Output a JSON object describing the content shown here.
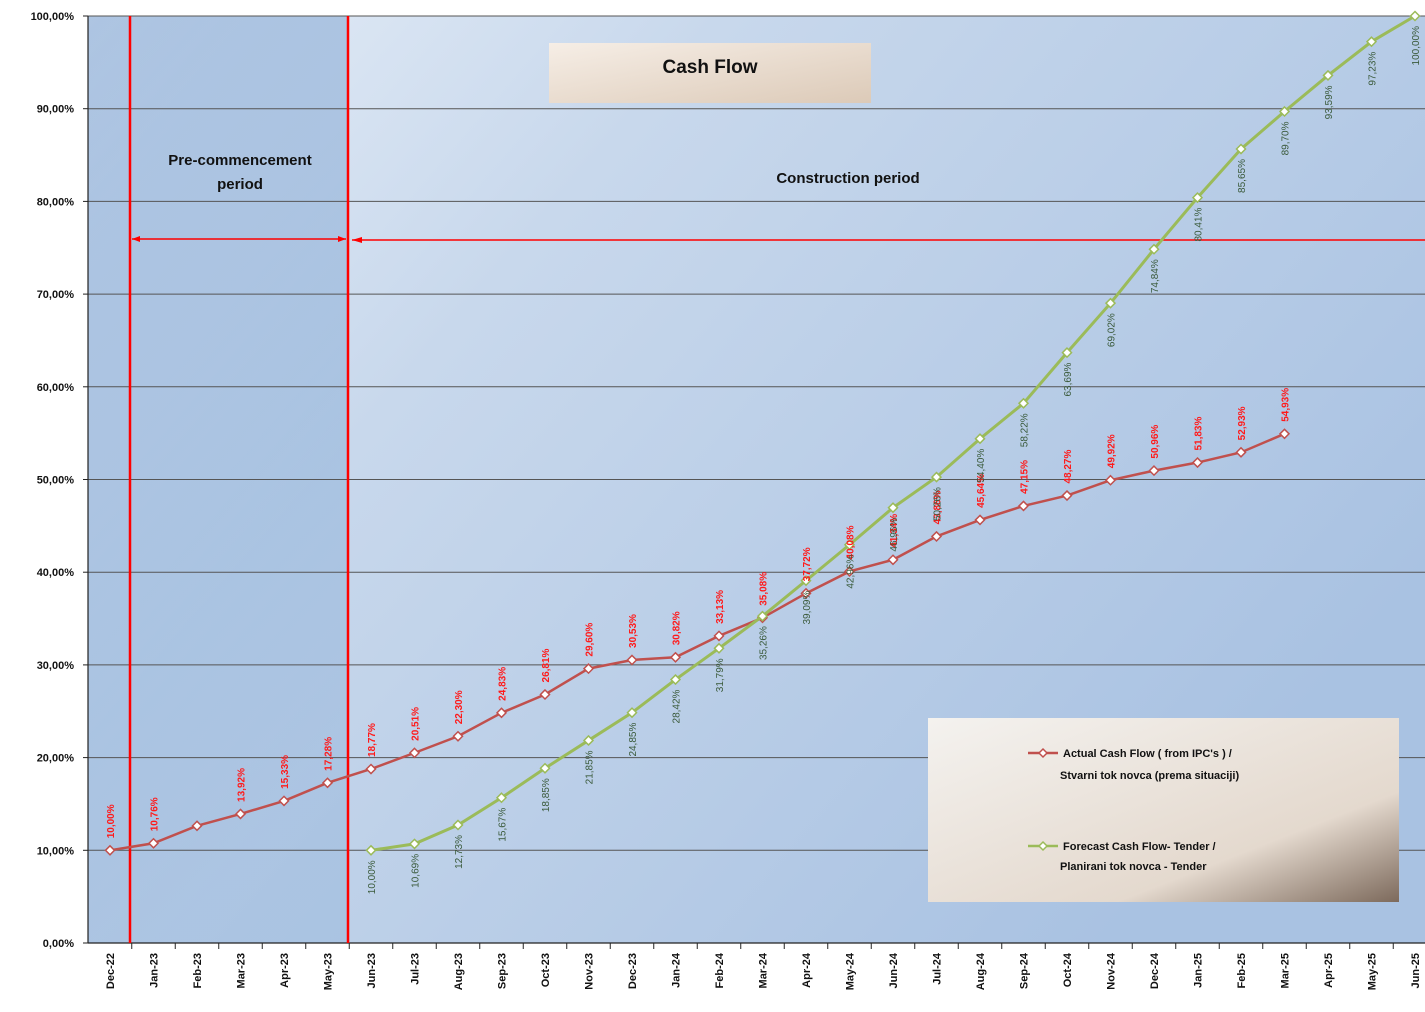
{
  "chart_data": {
    "type": "line",
    "title": "Cash Flow",
    "ylim": [
      0,
      100
    ],
    "yticks": [
      "0,00%",
      "10,00%",
      "20,00%",
      "30,00%",
      "40,00%",
      "50,00%",
      "60,00%",
      "70,00%",
      "80,00%",
      "90,00%",
      "100,00%"
    ],
    "categories": [
      "Dec-22",
      "Jan-23",
      "Feb-23",
      "Mar-23",
      "Apr-23",
      "May-23",
      "Jun-23",
      "Jul-23",
      "Aug-23",
      "Sep-23",
      "Oct-23",
      "Nov-23",
      "Dec-23",
      "Jan-24",
      "Feb-24",
      "Mar-24",
      "Apr-24",
      "May-24",
      "Jun-24",
      "Jul-24",
      "Aug-24",
      "Sep-24",
      "Oct-24",
      "Nov-24",
      "Dec-24",
      "Jan-25",
      "Feb-25",
      "Mar-25",
      "Apr-25",
      "May-25",
      "Jun-25"
    ],
    "series": [
      {
        "name": "Actual Cash Flow ( from IPC's ) / Stvarni tok novca (prema situaciji)",
        "color": "#c0504d",
        "values": [
          10.0,
          10.76,
          12.64,
          13.92,
          15.33,
          17.28,
          18.77,
          20.51,
          22.3,
          24.83,
          26.81,
          29.6,
          30.53,
          30.82,
          33.13,
          35.08,
          37.72,
          40.08,
          41.34,
          43.86,
          45.64,
          47.15,
          48.27,
          49.92,
          50.96,
          51.83,
          52.93,
          54.93,
          null,
          null,
          null
        ],
        "labels": [
          "10,00%",
          "10,76%",
          "",
          "13,92%",
          "15,33%",
          "17,28%",
          "18,77%",
          "20,51%",
          "22,30%",
          "24,83%",
          "26,81%",
          "29,60%",
          "30,53%",
          "30,82%",
          "33,13%",
          "35,08%",
          "37,72%",
          "40,08%",
          "41,34%",
          "43,86%",
          "45,64%",
          "47,15%",
          "48,27%",
          "49,92%",
          "50,96%",
          "51,83%",
          "52,93%",
          "54,93%",
          "",
          "",
          ""
        ]
      },
      {
        "name": "Forecast  Cash Flow- Tender / Planirani tok novca - Tender",
        "color": "#9bbb59",
        "values": [
          null,
          null,
          null,
          null,
          null,
          null,
          10.0,
          10.69,
          12.73,
          15.67,
          18.85,
          21.85,
          24.85,
          28.42,
          31.79,
          35.26,
          39.09,
          42.96,
          46.96,
          50.26,
          54.4,
          58.22,
          63.69,
          69.02,
          74.84,
          80.41,
          85.65,
          89.7,
          93.59,
          97.23,
          100.0
        ],
        "labels": [
          "",
          "",
          "",
          "",
          "",
          "",
          "10,00%",
          "10,69%",
          "12,73%",
          "15,67%",
          "18,85%",
          "21,85%",
          "24,85%",
          "28,42%",
          "31,79%",
          "35,26%",
          "39,09%",
          "42,96%",
          "46,96%",
          "50,26%",
          "54,40%",
          "58,22%",
          "63,69%",
          "69,02%",
          "74,84%",
          "80,41%",
          "85,65%",
          "89,70%",
          "93,59%",
          "97,23%",
          "100,00%"
        ]
      }
    ],
    "periods": [
      {
        "text_line1": "Pre-commencement",
        "text_line2": "period"
      },
      {
        "text_line1": "Construction period",
        "text_line2": ""
      }
    ],
    "grid": true,
    "legend": "bottom-right",
    "colors": {
      "period_divider": "#ff0000",
      "gridline": "#555555",
      "plot_bg_light": "#eaf0f8",
      "plot_bg_dark": "#7aa0cf"
    }
  }
}
